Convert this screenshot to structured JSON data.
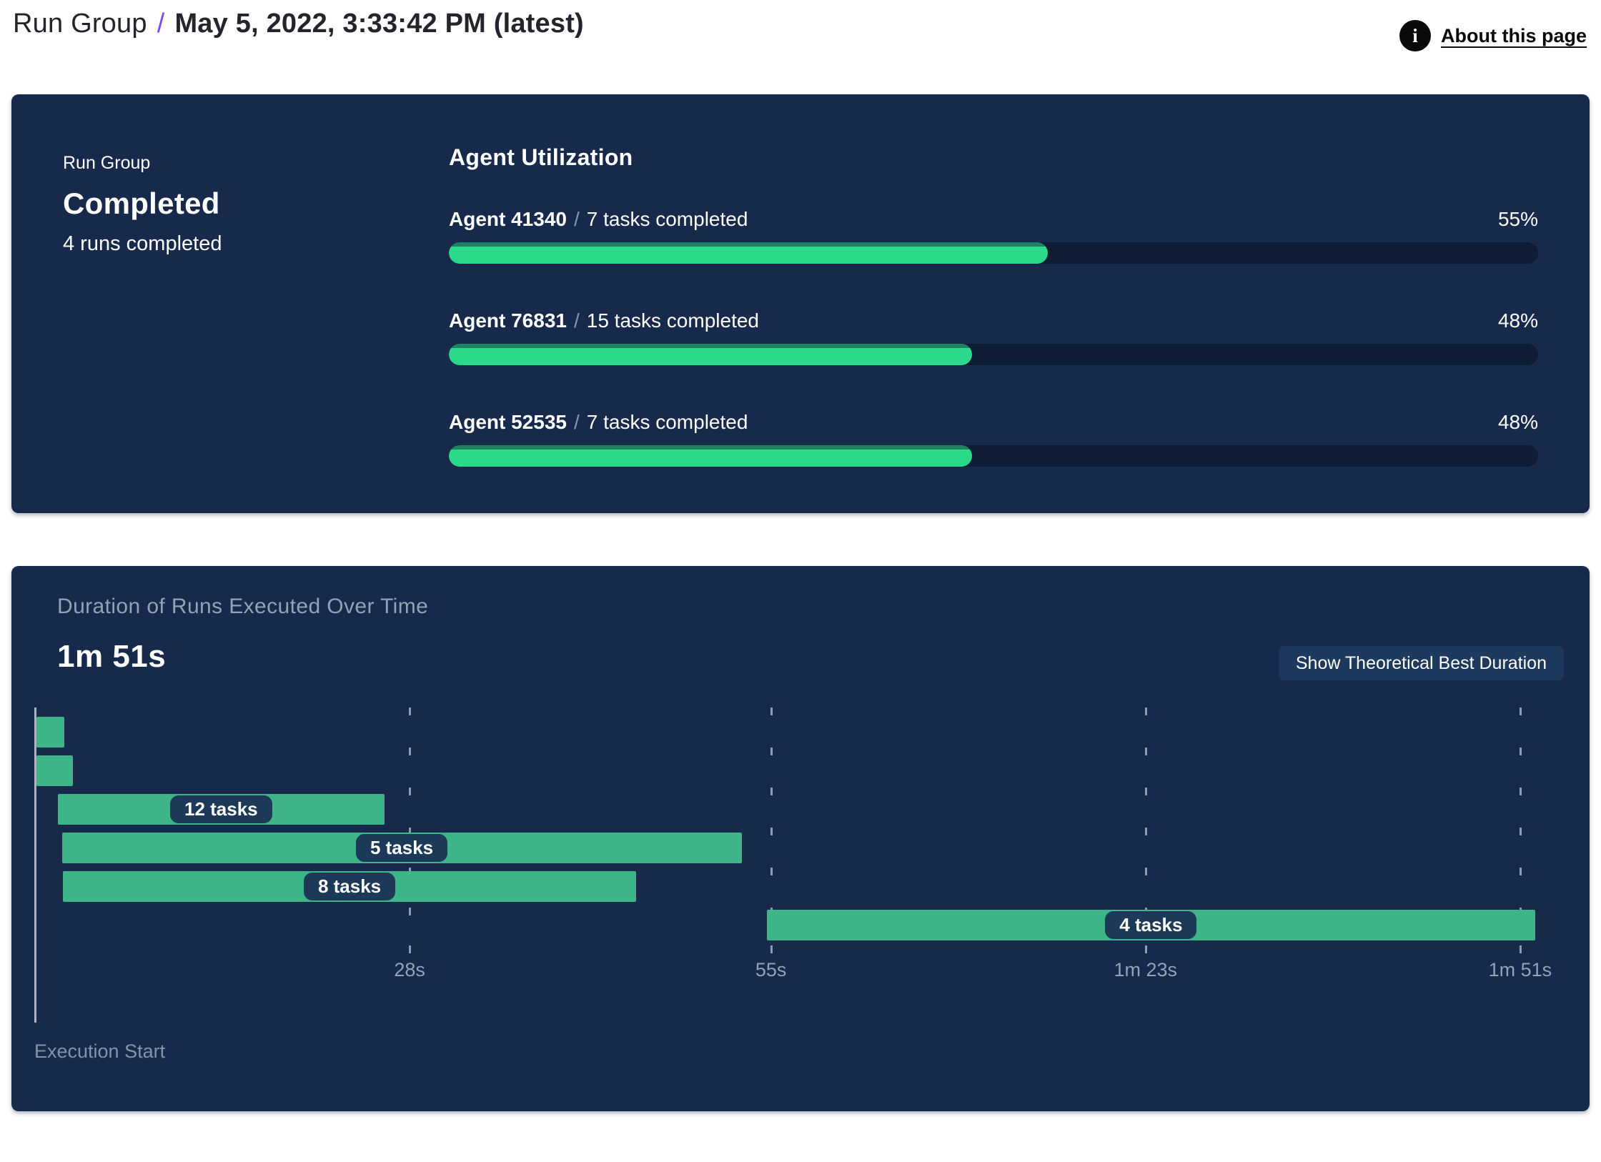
{
  "header": {
    "breadcrumb_root": "Run Group",
    "separator": "/",
    "title": "May 5, 2022, 3:33:42 PM (latest)",
    "accent_color": "#7a4bf0",
    "info_icon_glyph": "i",
    "about_link_label": "About this page"
  },
  "run_group_panel": {
    "label": "Run Group",
    "status": "Completed",
    "runs_summary": "4 runs completed",
    "utilization": {
      "title": "Agent Utilization",
      "fill_color": "#2bd98a",
      "track_color": "#0e1c34",
      "rows": [
        {
          "agent": "Agent 41340",
          "separator": "/",
          "tasks": "7 tasks completed",
          "percent_label": "55%",
          "percent": 55
        },
        {
          "agent": "Agent 76831",
          "separator": "/",
          "tasks": "15 tasks completed",
          "percent_label": "48%",
          "percent": 48
        },
        {
          "agent": "Agent 52535",
          "separator": "/",
          "tasks": "7 tasks completed",
          "percent_label": "48%",
          "percent": 48
        }
      ]
    }
  },
  "duration_panel": {
    "title": "Duration of Runs Executed Over Time",
    "total_duration": "1m 51s",
    "button_label": "Show Theoretical Best Duration",
    "execution_start_label": "Execution Start",
    "chart_data": {
      "type": "gantt",
      "title": "Duration of Runs Executed Over Time",
      "xlabel_start": "Execution Start",
      "x_axis_seconds": {
        "min": 0,
        "max": 112
      },
      "ticks": [
        {
          "seconds": 28,
          "label": "28s"
        },
        {
          "seconds": 55,
          "label": "55s"
        },
        {
          "seconds": 83,
          "label": "1m 23s"
        },
        {
          "seconds": 111,
          "label": "1m 51s"
        }
      ],
      "bars": [
        {
          "start_s": 0,
          "end_s": 2.1,
          "label": ""
        },
        {
          "start_s": 0,
          "end_s": 2.7,
          "label": ""
        },
        {
          "start_s": 1.6,
          "end_s": 26.0,
          "label": "12 tasks"
        },
        {
          "start_s": 1.9,
          "end_s": 52.7,
          "label": "5 tasks"
        },
        {
          "start_s": 2.0,
          "end_s": 44.8,
          "label": "8 tasks"
        },
        {
          "start_s": 54.6,
          "end_s": 112.0,
          "label": "4 tasks"
        }
      ],
      "bar_color": "#3eb489",
      "chip_color": "#1c3a57",
      "grid": true
    }
  }
}
